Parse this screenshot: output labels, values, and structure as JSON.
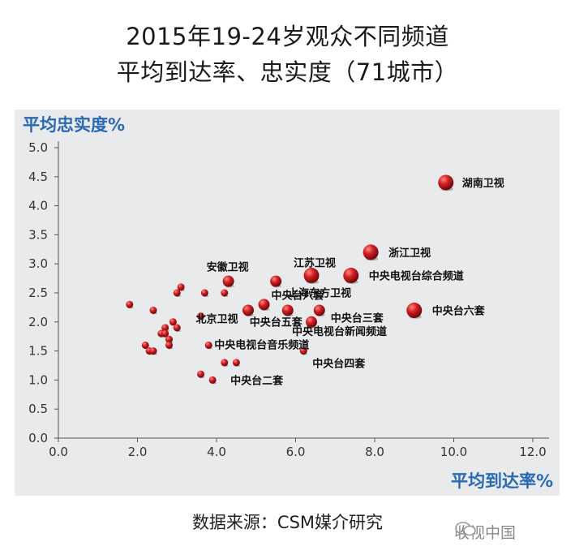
{
  "title_line1": "2015年19-24岁观众不同频道",
  "title_line2": "平均到达率、忠实度（71城市）",
  "source": "数据来源：CSM媒介研究",
  "watermark": "收视中国",
  "colors": {
    "point": "#c8161b",
    "axis_title": "#2a6ab3",
    "panel": "#e8eaec"
  },
  "chart_data": {
    "type": "scatter",
    "ylabel": "平均忠实度%",
    "xlabel": "平均到达率%",
    "xlim": [
      0,
      12
    ],
    "ylim": [
      0,
      5
    ],
    "x_ticks": [
      "0.0",
      "2.0",
      "4.0",
      "6.0",
      "8.0",
      "10.0",
      "12.0"
    ],
    "y_ticks": [
      "0.0",
      "0.5",
      "1.0",
      "1.5",
      "2.0",
      "2.5",
      "3.0",
      "3.5",
      "4.0",
      "4.5",
      "5.0"
    ],
    "grid": false,
    "points": [
      {
        "x": 9.8,
        "y": 4.4,
        "label": "湖南卫视",
        "size": "large"
      },
      {
        "x": 7.9,
        "y": 3.2,
        "label": "浙江卫视",
        "size": "large"
      },
      {
        "x": 7.4,
        "y": 2.8,
        "label": "中央电视台综合频道",
        "size": "large"
      },
      {
        "x": 6.4,
        "y": 2.8,
        "label": "江苏卫视",
        "size": "large"
      },
      {
        "x": 9.0,
        "y": 2.2,
        "label": "中央台六套",
        "size": "large"
      },
      {
        "x": 4.3,
        "y": 2.7,
        "label": "安徽卫视",
        "size": "medium"
      },
      {
        "x": 5.5,
        "y": 2.7,
        "label": "上海东方卫视",
        "size": "medium"
      },
      {
        "x": 5.2,
        "y": 2.3,
        "label": "中央台八套",
        "size": "medium"
      },
      {
        "x": 6.6,
        "y": 2.2,
        "label": "中央台三套",
        "size": "medium"
      },
      {
        "x": 4.8,
        "y": 2.2,
        "label": "",
        "size": "medium"
      },
      {
        "x": 5.8,
        "y": 2.2,
        "label": "中央台五套",
        "size": "medium"
      },
      {
        "x": 6.4,
        "y": 2.0,
        "label": "中央电视台新闻频道",
        "size": "medium"
      },
      {
        "x": 6.2,
        "y": 1.5,
        "label": "中央台四套",
        "size": "small"
      },
      {
        "x": 3.6,
        "y": 2.1,
        "label": "北京卫视",
        "size": "small"
      },
      {
        "x": 3.8,
        "y": 1.6,
        "label": "中央电视台音乐频道",
        "size": "small"
      },
      {
        "x": 3.9,
        "y": 1.0,
        "label": "中央台二套",
        "size": "small"
      },
      {
        "x": 1.8,
        "y": 2.3,
        "label": "",
        "size": "small"
      },
      {
        "x": 2.4,
        "y": 2.2,
        "label": "",
        "size": "small"
      },
      {
        "x": 3.1,
        "y": 2.6,
        "label": "",
        "size": "small"
      },
      {
        "x": 3.0,
        "y": 2.5,
        "label": "",
        "size": "small"
      },
      {
        "x": 3.7,
        "y": 2.5,
        "label": "",
        "size": "small"
      },
      {
        "x": 4.2,
        "y": 2.5,
        "label": "",
        "size": "small"
      },
      {
        "x": 2.9,
        "y": 2.0,
        "label": "",
        "size": "small"
      },
      {
        "x": 3.0,
        "y": 1.9,
        "label": "",
        "size": "small"
      },
      {
        "x": 2.7,
        "y": 1.9,
        "label": "",
        "size": "small"
      },
      {
        "x": 2.6,
        "y": 1.8,
        "label": "",
        "size": "small"
      },
      {
        "x": 2.7,
        "y": 1.8,
        "label": "",
        "size": "small"
      },
      {
        "x": 2.8,
        "y": 1.7,
        "label": "",
        "size": "small"
      },
      {
        "x": 2.8,
        "y": 1.6,
        "label": "",
        "size": "small"
      },
      {
        "x": 2.2,
        "y": 1.6,
        "label": "",
        "size": "small"
      },
      {
        "x": 2.3,
        "y": 1.5,
        "label": "",
        "size": "small"
      },
      {
        "x": 2.4,
        "y": 1.5,
        "label": "",
        "size": "small"
      },
      {
        "x": 3.6,
        "y": 1.1,
        "label": "",
        "size": "small"
      },
      {
        "x": 4.2,
        "y": 1.3,
        "label": "",
        "size": "small"
      },
      {
        "x": 4.5,
        "y": 1.3,
        "label": "",
        "size": "small"
      }
    ]
  }
}
